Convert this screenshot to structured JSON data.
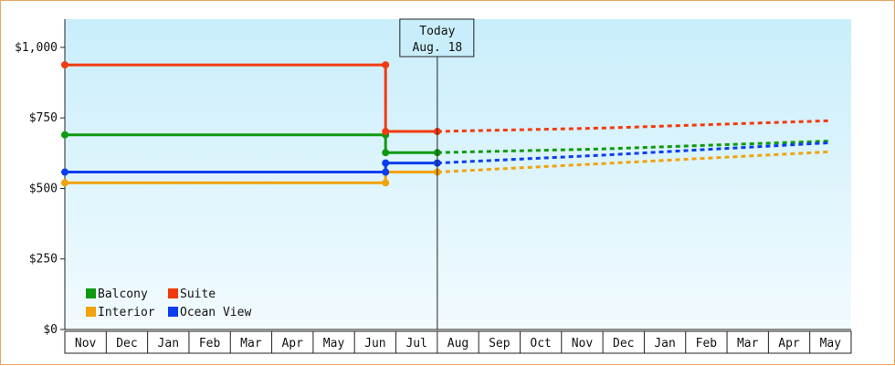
{
  "chart_data": {
    "type": "line",
    "title": "",
    "xlabel": "",
    "ylabel": "",
    "x_ticks": [
      "Nov",
      "Dec",
      "Jan",
      "Feb",
      "Mar",
      "Apr",
      "May",
      "Jun",
      "Jul",
      "Aug",
      "Sep",
      "Oct",
      "Nov",
      "Dec",
      "Jan",
      "Feb",
      "Mar",
      "Apr",
      "May"
    ],
    "y_ticks": [
      {
        "value": 0,
        "label": "$0"
      },
      {
        "value": 250,
        "label": "$250"
      },
      {
        "value": 500,
        "label": "$500"
      },
      {
        "value": 750,
        "label": "$750"
      },
      {
        "value": 1000,
        "label": "$1,000"
      }
    ],
    "ylim": [
      0,
      1100
    ],
    "grid": false,
    "legend_position": "bottom-left",
    "today": {
      "label": "Today",
      "date": "Aug. 18",
      "x": 9.0
    },
    "series": [
      {
        "name": "Balcony",
        "color": "#0f9a0f",
        "history": [
          [
            0,
            690
          ],
          [
            7.75,
            690
          ],
          [
            7.75,
            627
          ],
          [
            9.0,
            627
          ]
        ],
        "markers": [
          [
            0,
            690
          ],
          [
            7.75,
            690
          ],
          [
            7.75,
            627
          ],
          [
            9.0,
            627
          ]
        ],
        "forecast": [
          [
            9.0,
            627
          ],
          [
            13,
            640
          ],
          [
            18.5,
            668
          ]
        ]
      },
      {
        "name": "Suite",
        "color": "#f23a0f",
        "history": [
          [
            0,
            938
          ],
          [
            7.75,
            938
          ],
          [
            7.75,
            702
          ],
          [
            9.0,
            702
          ]
        ],
        "markers": [
          [
            0,
            938
          ],
          [
            7.75,
            938
          ],
          [
            7.75,
            702
          ],
          [
            9.0,
            702
          ]
        ],
        "forecast": [
          [
            9.0,
            702
          ],
          [
            13,
            714
          ],
          [
            18.5,
            740
          ]
        ]
      },
      {
        "name": "Interior",
        "color": "#f2a20a",
        "history": [
          [
            0,
            520
          ],
          [
            7.75,
            520
          ],
          [
            7.75,
            558
          ],
          [
            9.0,
            558
          ]
        ],
        "markers": [
          [
            0,
            520
          ],
          [
            7.75,
            520
          ],
          [
            7.75,
            558
          ],
          [
            9.0,
            558
          ]
        ],
        "forecast": [
          [
            9.0,
            558
          ],
          [
            13,
            588
          ],
          [
            18.5,
            630
          ]
        ]
      },
      {
        "name": "Ocean View",
        "color": "#0b3ef0",
        "history": [
          [
            0,
            558
          ],
          [
            7.75,
            558
          ],
          [
            7.75,
            590
          ],
          [
            9.0,
            590
          ]
        ],
        "markers": [
          [
            0,
            558
          ],
          [
            7.75,
            558
          ],
          [
            7.75,
            590
          ],
          [
            9.0,
            590
          ]
        ],
        "forecast": [
          [
            9.0,
            590
          ],
          [
            13,
            618
          ],
          [
            18.5,
            662
          ]
        ]
      }
    ]
  }
}
